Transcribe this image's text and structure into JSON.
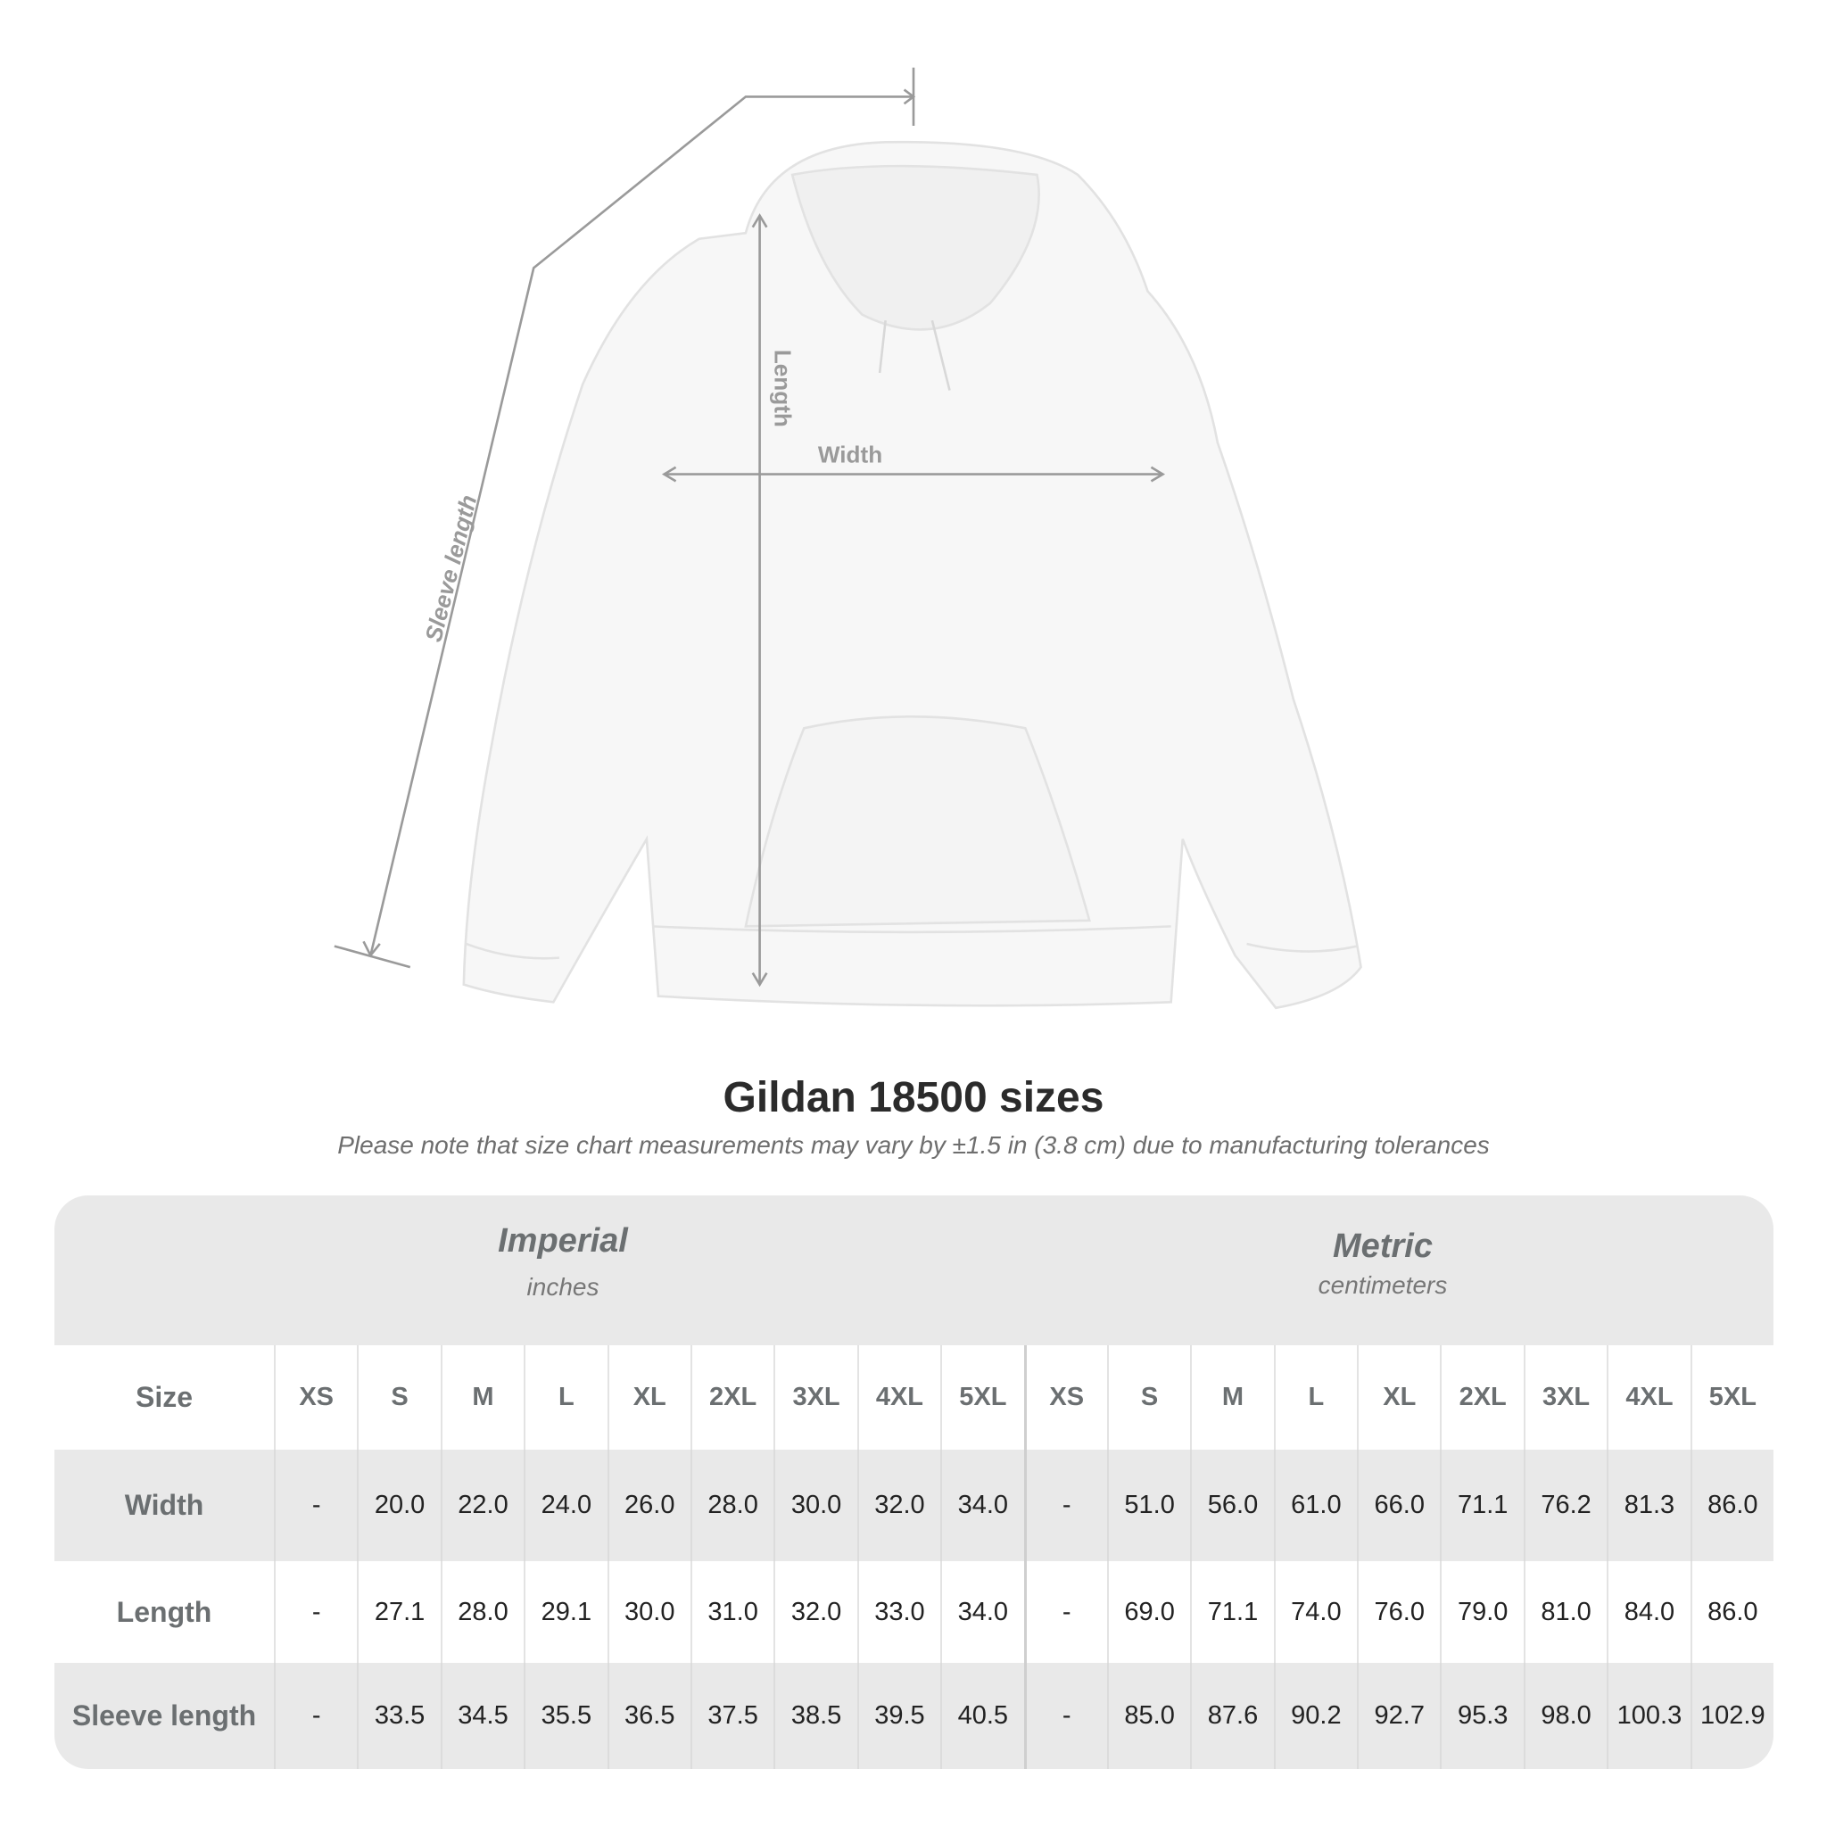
{
  "diagram": {
    "labels": {
      "sleeve": "Sleeve length",
      "length": "Length",
      "width": "Width"
    },
    "line_color": "#9a9a9a"
  },
  "title": "Gildan 18500 sizes",
  "note": "Please note that size chart measurements may vary by ±1.5 in (3.8 cm) due to manufacturing tolerances",
  "table": {
    "imperial": {
      "name": "Imperial",
      "unit": "inches"
    },
    "metric": {
      "name": "Metric",
      "unit": "centimeters"
    },
    "size_label": "Size",
    "sizes": [
      "XS",
      "S",
      "M",
      "L",
      "XL",
      "2XL",
      "3XL",
      "4XL",
      "5XL"
    ],
    "rows": [
      {
        "label": "Width",
        "imperial": [
          "-",
          "20.0",
          "22.0",
          "24.0",
          "26.0",
          "28.0",
          "30.0",
          "32.0",
          "34.0"
        ],
        "metric": [
          "-",
          "51.0",
          "56.0",
          "61.0",
          "66.0",
          "71.1",
          "76.2",
          "81.3",
          "86.0"
        ]
      },
      {
        "label": "Length",
        "imperial": [
          "-",
          "27.1",
          "28.0",
          "29.1",
          "30.0",
          "31.0",
          "32.0",
          "33.0",
          "34.0"
        ],
        "metric": [
          "-",
          "69.0",
          "71.1",
          "74.0",
          "76.0",
          "79.0",
          "81.0",
          "84.0",
          "86.0"
        ]
      },
      {
        "label": "Sleeve length",
        "imperial": [
          "-",
          "33.5",
          "34.5",
          "35.5",
          "36.5",
          "37.5",
          "38.5",
          "39.5",
          "40.5"
        ],
        "metric": [
          "-",
          "85.0",
          "87.6",
          "90.2",
          "92.7",
          "95.3",
          "98.0",
          "100.3",
          "102.9"
        ]
      }
    ]
  }
}
